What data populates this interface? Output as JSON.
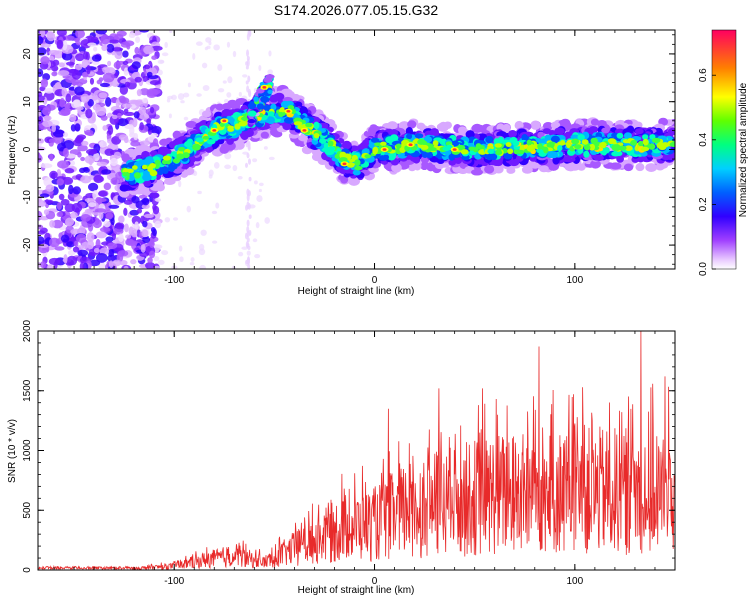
{
  "title": "S174.2026.077.05.15.G32",
  "chart_data": [
    {
      "type": "heatmap",
      "xlabel": "Height of straight line (km)",
      "ylabel": "Frequency (Hz)",
      "xlim": [
        -168,
        150
      ],
      "ylim": [
        -25,
        25
      ],
      "xticks": [
        "-100",
        "0",
        "100"
      ],
      "yticks": [
        "-20",
        "-10",
        "0",
        "10",
        "20"
      ],
      "colorbar": {
        "label": "Normalized spectral amplitude",
        "range": [
          0.0,
          0.74
        ],
        "ticks": [
          "0.0",
          "0.2",
          "0.4",
          "0.6"
        ]
      },
      "ridge": [
        {
          "x": -125,
          "y": -5
        },
        {
          "x": -110,
          "y": -4
        },
        {
          "x": -100,
          "y": -2
        },
        {
          "x": -90,
          "y": 1
        },
        {
          "x": -80,
          "y": 4
        },
        {
          "x": -70,
          "y": 5
        },
        {
          "x": -60,
          "y": 7
        },
        {
          "x": -50,
          "y": 8
        },
        {
          "x": -42,
          "y": 8
        },
        {
          "x": -35,
          "y": 5
        },
        {
          "x": -25,
          "y": 2
        },
        {
          "x": -15,
          "y": -2
        },
        {
          "x": -8,
          "y": -3
        },
        {
          "x": 0,
          "y": 0
        },
        {
          "x": 20,
          "y": 1
        },
        {
          "x": 50,
          "y": 0
        },
        {
          "x": 100,
          "y": 1
        },
        {
          "x": 150,
          "y": 1
        }
      ],
      "branch": [
        {
          "x": -62,
          "y": 7
        },
        {
          "x": -55,
          "y": 12
        },
        {
          "x": -52,
          "y": 14
        }
      ]
    },
    {
      "type": "line",
      "xlabel": "Height of straight line (km)",
      "ylabel": "SNR (10 * v/v)",
      "xlim": [
        -168,
        150
      ],
      "ylim": [
        0,
        2000
      ],
      "xticks": [
        "-100",
        "0",
        "100"
      ],
      "yticks": [
        "0",
        "500",
        "1000",
        "1500",
        "2000"
      ],
      "series": [
        {
          "name": "SNR",
          "color": "#e82a2a",
          "envelope_x": [
            -168,
            -120,
            -100,
            -85,
            -70,
            -55,
            -42,
            -30,
            -15,
            0,
            15,
            30,
            60,
            100,
            150
          ],
          "envelope_y": [
            20,
            25,
            60,
            150,
            220,
            120,
            300,
            450,
            650,
            700,
            900,
            1000,
            1150,
            1200,
            1200
          ],
          "peaks": [
            {
              "x": 7,
              "y": 1350
            },
            {
              "x": 32,
              "y": 1520
            },
            {
              "x": 54,
              "y": 1520
            },
            {
              "x": 82,
              "y": 1870
            },
            {
              "x": 104,
              "y": 1530
            },
            {
              "x": 133,
              "y": 2000
            },
            {
              "x": 145,
              "y": 1620
            }
          ]
        }
      ]
    }
  ]
}
